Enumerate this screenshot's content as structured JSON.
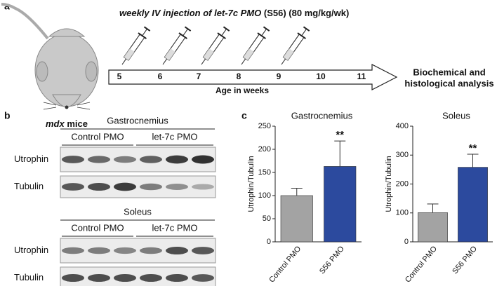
{
  "panel_labels": [
    "a",
    "b",
    "c"
  ],
  "panel_a": {
    "title_italic": "weekly IV injection of let-7c PMO",
    "title_rest": "(S56) (80 mg/kg/wk)",
    "mouse_strain": "mdx",
    "mouse_word": "mice",
    "weeks": [
      "5",
      "6",
      "7",
      "8",
      "9",
      "10",
      "11"
    ],
    "axis_label": "Age in weeks",
    "outcome": [
      "Biochemical and",
      "histological analysis"
    ]
  },
  "panel_b": {
    "blots": [
      {
        "muscle": "Gastrocnemius",
        "groups": [
          "Control PMO",
          "let-7c PMO"
        ],
        "rows": [
          "Utrophin",
          "Tubulin"
        ]
      },
      {
        "muscle": "Soleus",
        "groups": [
          "Control PMO",
          "let-7c PMO"
        ],
        "rows": [
          "Utrophin",
          "Tubulin"
        ]
      }
    ]
  },
  "chart_data": [
    {
      "type": "bar",
      "title": "Gastrocnemius",
      "ylabel": "Utrophin/Tubulin",
      "categories": [
        "Control PMO",
        "S56 PMO"
      ],
      "values": [
        100,
        163
      ],
      "errors": [
        16,
        55
      ],
      "colors": [
        "#a3a3a3",
        "#2c4a9e"
      ],
      "ylim": [
        0,
        250
      ],
      "yticks": [
        0,
        50,
        100,
        150,
        200,
        250
      ],
      "annotation": "**"
    },
    {
      "type": "bar",
      "title": "Soleus",
      "ylabel": "Utrophin/Tubulin",
      "categories": [
        "Control PMO",
        "S56 PMO"
      ],
      "values": [
        101,
        258
      ],
      "errors": [
        30,
        45
      ],
      "colors": [
        "#a3a3a3",
        "#2c4a9e"
      ],
      "ylim": [
        0,
        400
      ],
      "yticks": [
        0,
        100,
        200,
        300,
        400
      ],
      "annotation": "**"
    }
  ]
}
